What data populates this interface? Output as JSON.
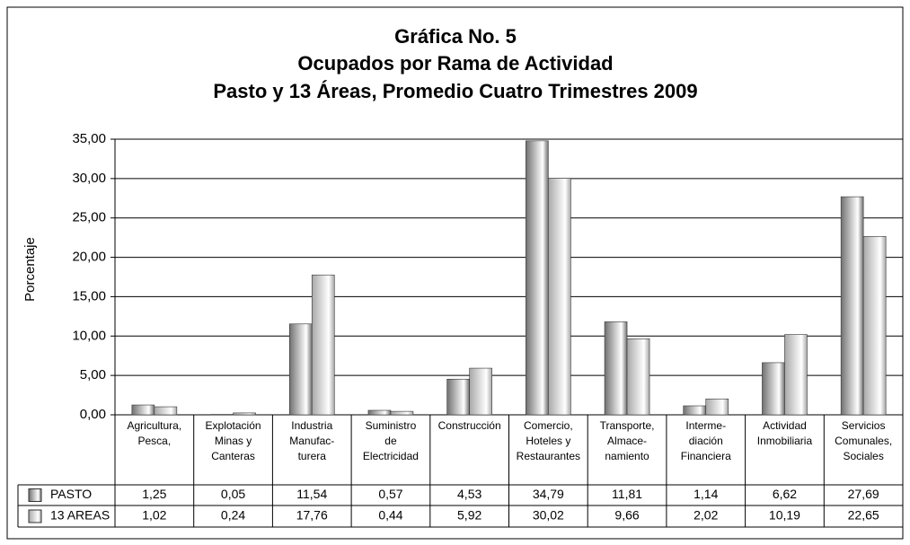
{
  "chart_data": {
    "type": "bar",
    "title": [
      "Gráfica No. 5",
      "Ocupados por Rama de Actividad",
      "Pasto y 13 Áreas, Promedio Cuatro Trimestres 2009"
    ],
    "ylabel": "Porcentaje",
    "categories": [
      [
        "Agricultura,",
        "Pesca,"
      ],
      [
        "Explotación",
        "Minas y",
        "Canteras"
      ],
      [
        "Industria",
        "Manufac-",
        "turera"
      ],
      [
        "Suministro",
        "de",
        "Electricidad"
      ],
      [
        "Construcción"
      ],
      [
        "Comercio,",
        "Hoteles y",
        "Restaurantes"
      ],
      [
        "Transporte,",
        "Almace-",
        "namiento"
      ],
      [
        "Interme-",
        "diación",
        "Financiera"
      ],
      [
        "Actividad",
        "Inmobiliaria"
      ],
      [
        "Servicios",
        "Comunales,",
        "Sociales"
      ]
    ],
    "series": [
      {
        "name": "PASTO",
        "color": "#707070",
        "values": [
          1.25,
          0.05,
          11.54,
          0.57,
          4.53,
          34.79,
          11.81,
          1.14,
          6.62,
          27.69
        ],
        "value_labels": [
          "1,25",
          "0,05",
          "11,54",
          "0,57",
          "4,53",
          "34,79",
          "11,81",
          "1,14",
          "6,62",
          "27,69"
        ]
      },
      {
        "name": "13 AREAS",
        "color": "#a8a8a8",
        "values": [
          1.02,
          0.24,
          17.76,
          0.44,
          5.92,
          30.02,
          9.66,
          2.02,
          10.19,
          22.65
        ],
        "value_labels": [
          "1,02",
          "0,24",
          "17,76",
          "0,44",
          "5,92",
          "30,02",
          "9,66",
          "2,02",
          "10,19",
          "22,65"
        ]
      }
    ],
    "ylim": [
      0,
      35
    ],
    "yticks": [
      {
        "value": 0,
        "label": "0,00"
      },
      {
        "value": 5,
        "label": "5,00"
      },
      {
        "value": 10,
        "label": "10,00"
      },
      {
        "value": 15,
        "label": "15,00"
      },
      {
        "value": 20,
        "label": "20,00"
      },
      {
        "value": 25,
        "label": "25,00"
      },
      {
        "value": 30,
        "label": "30,00"
      },
      {
        "value": 35,
        "label": "35,00"
      }
    ],
    "grid": true
  }
}
